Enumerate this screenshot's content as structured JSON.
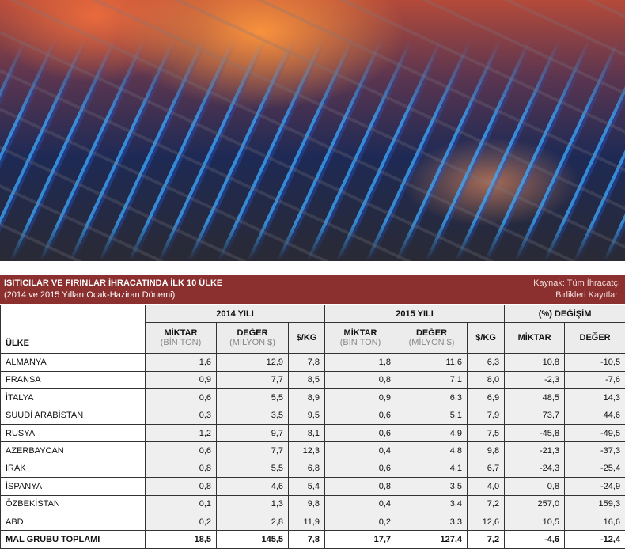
{
  "photo": {
    "subject": "gas-burner-flames"
  },
  "banner": {
    "title": "ISITICILAR VE FIRINLAR İHRACATINDA İLK 10 ÜLKE",
    "subtitle": "(2014 ve 2015 Yılları Ocak-Haziran Dönemi)",
    "source_line1": "Kaynak: Tüm İhracatçı",
    "source_line2": "Birlikleri Kayıtları",
    "color": "#8b2f2f"
  },
  "table": {
    "country_header": "ÜLKE",
    "group_2014": "2014 YILI",
    "group_2015": "2015 YILI",
    "group_change": "(%) DEĞİŞİM",
    "miktar": "MİKTAR",
    "miktar_unit": "(BİN TON)",
    "deger": "DEĞER",
    "deger_unit": "(MİLYON $)",
    "perkg": "$/KG",
    "change_miktar": "MİKTAR",
    "change_deger": "DEĞER",
    "rows": [
      [
        "ALMANYA",
        "1,6",
        "12,9",
        "7,8",
        "1,8",
        "11,6",
        "6,3",
        "10,8",
        "-10,5"
      ],
      [
        "FRANSA",
        "0,9",
        "7,7",
        "8,5",
        "0,8",
        "7,1",
        "8,0",
        "-2,3",
        "-7,6"
      ],
      [
        "İTALYA",
        "0,6",
        "5,5",
        "8,9",
        "0,9",
        "6,3",
        "6,9",
        "48,5",
        "14,3"
      ],
      [
        "SUUDİ ARABİSTAN",
        "0,3",
        "3,5",
        "9,5",
        "0,6",
        "5,1",
        "7,9",
        "73,7",
        "44,6"
      ],
      [
        "RUSYA",
        "1,2",
        "9,7",
        "8,1",
        "0,6",
        "4,9",
        "7,5",
        "-45,8",
        "-49,5"
      ],
      [
        "AZERBAYCAN",
        "0,6",
        "7,7",
        "12,3",
        "0,4",
        "4,8",
        "9,8",
        "-21,3",
        "-37,3"
      ],
      [
        "IRAK",
        "0,8",
        "5,5",
        "6,8",
        "0,6",
        "4,1",
        "6,7",
        "-24,3",
        "-25,4"
      ],
      [
        "İSPANYA",
        "0,8",
        "4,6",
        "5,4",
        "0,8",
        "3,5",
        "4,0",
        "0,8",
        "-24,9"
      ],
      [
        "ÖZBEKİSTAN",
        "0,1",
        "1,3",
        "9,8",
        "0,4",
        "3,4",
        "7,2",
        "257,0",
        "159,3"
      ],
      [
        "ABD",
        "0,2",
        "2,8",
        "11,9",
        "0,2",
        "3,3",
        "12,6",
        "10,5",
        "16,6"
      ]
    ],
    "total": [
      "MAL GRUBU TOPLAMI",
      "18,5",
      "145,5",
      "7,8",
      "17,7",
      "127,4",
      "7,2",
      "-4,6",
      "-12,4"
    ]
  }
}
